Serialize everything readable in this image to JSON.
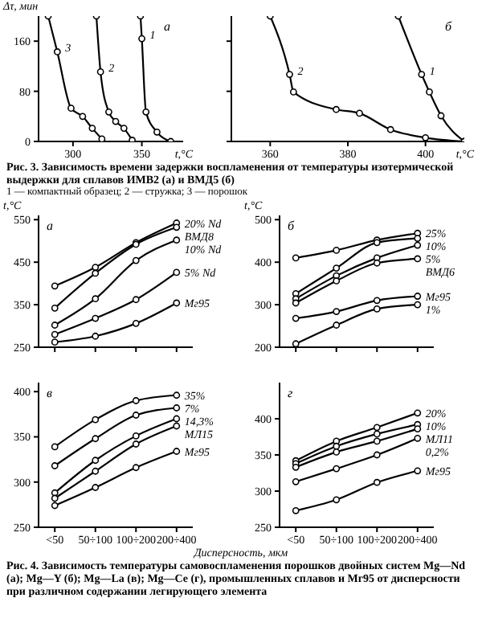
{
  "chart_data": [
    {
      "type": "line",
      "title": "а",
      "xlabel": "t,°C",
      "ylabel": "Δτ, мин",
      "xlim": [
        275,
        380
      ],
      "xticks": [
        300,
        350
      ],
      "ylim": [
        0,
        200
      ],
      "yticks": [
        0,
        80,
        160
      ],
      "marker": "circle",
      "series": [
        {
          "name": "3",
          "color": "#000000",
          "x": [
            282,
            288.6,
            298.6,
            307,
            314,
            321
          ],
          "values": [
            200,
            143,
            53,
            40,
            21,
            4
          ]
        },
        {
          "name": "2",
          "color": "#000000",
          "x": [
            317,
            320,
            326,
            331,
            337,
            343
          ],
          "values": [
            200,
            111,
            47,
            32,
            21,
            2
          ]
        },
        {
          "name": "1",
          "color": "#000000",
          "x": [
            349,
            350,
            353,
            361,
            371
          ],
          "values": [
            200,
            164,
            47,
            15,
            0
          ]
        }
      ]
    },
    {
      "type": "line",
      "title": "б",
      "xlabel": "t,°C",
      "xlim": [
        350,
        410
      ],
      "xticks": [
        360,
        380,
        400
      ],
      "ylim": [
        0,
        200
      ],
      "yticks": [
        {
          "value": 0,
          "label": null
        },
        {
          "value": 80,
          "label": null
        },
        {
          "value": 160,
          "label": null
        }
      ],
      "tick_labels": "x",
      "marker": "circle",
      "annotations": [
        "Рис. 3. Зависимость времени задержки воспламенения от температуры изотермической выдержки для сплавов ИМВ2 (а) и ВМД5 (б)",
        "1 — компактный образец; 2 — стружка; 3 — порошок"
      ],
      "series": [
        {
          "name": "2",
          "color": "#000000",
          "x": [
            360,
            365,
            366,
            377,
            383,
            391,
            400,
            410
          ],
          "values": [
            200,
            107,
            79,
            51,
            45,
            19,
            6,
            0
          ]
        },
        {
          "name": "1",
          "color": "#000000",
          "x": [
            393,
            399,
            401,
            404,
            410
          ],
          "values": [
            200,
            107,
            79,
            41,
            0
          ]
        }
      ]
    },
    {
      "type": "line",
      "title": "а",
      "ylabel": "t,°C",
      "categories": [
        null,
        null,
        null,
        null
      ],
      "ylim": [
        250,
        560
      ],
      "yticks": [
        250,
        350,
        450,
        550
      ],
      "tick_labels": "y",
      "marker": "circle",
      "series": [
        {
          "name": "20% Nd",
          "color": "#000000",
          "values": [
            394,
            438,
            496,
            542
          ]
        },
        {
          "name": "ВМД8",
          "color": "#000000",
          "values": [
            342,
            424,
            492,
            532
          ]
        },
        {
          "name": "10% Nd",
          "color": "#000000",
          "values": [
            302,
            364,
            454,
            502
          ]
        },
        {
          "name": "5% Nd",
          "color": "#000000",
          "values": [
            280,
            318,
            362,
            426
          ]
        },
        {
          "name": "Мг95",
          "color": "#000000",
          "values": [
            262,
            276,
            306,
            354
          ]
        }
      ]
    },
    {
      "type": "line",
      "title": "б",
      "ylabel": "t,°C",
      "categories": [
        null,
        null,
        null,
        null
      ],
      "ylim": [
        200,
        510
      ],
      "yticks": [
        200,
        300,
        400,
        500
      ],
      "tick_labels": "y",
      "marker": "circle",
      "series": [
        {
          "name": "25%",
          "color": "#000000",
          "values": [
            410,
            428,
            452,
            468
          ]
        },
        {
          "name": "10%",
          "color": "#000000",
          "values": [
            326,
            386,
            446,
            456
          ]
        },
        {
          "name": "5%",
          "color": "#000000",
          "values": [
            314,
            368,
            410,
            440
          ]
        },
        {
          "name": "ВМД6",
          "color": "#000000",
          "values": [
            304,
            356,
            398,
            408
          ]
        },
        {
          "name": "Мг95",
          "color": "#000000",
          "values": [
            268,
            284,
            310,
            320
          ]
        },
        {
          "name": "1%",
          "color": "#000000",
          "values": [
            208,
            252,
            290,
            300
          ]
        }
      ]
    },
    {
      "type": "line",
      "title": "в",
      "categories": [
        "<50",
        "50÷100",
        "100÷200",
        "200÷400"
      ],
      "ylim": [
        250,
        410
      ],
      "yticks": [
        250,
        300,
        350,
        400
      ],
      "marker": "circle",
      "series": [
        {
          "name": "35%",
          "color": "#000000",
          "values": [
            339,
            369,
            390,
            396
          ]
        },
        {
          "name": "7%",
          "color": "#000000",
          "values": [
            318,
            348,
            374,
            382
          ]
        },
        {
          "name": "14,3%",
          "color": "#000000",
          "values": [
            288,
            324,
            351,
            370
          ]
        },
        {
          "name": "МЛ15",
          "color": "#000000",
          "values": [
            282,
            312,
            342,
            362
          ]
        },
        {
          "name": "Мг95",
          "color": "#000000",
          "values": [
            274,
            294,
            316,
            334
          ]
        }
      ]
    },
    {
      "type": "line",
      "title": "г",
      "xlabel": "Дисперсность, мкм",
      "categories": [
        "<50",
        "50÷100",
        "100÷200",
        "200÷400"
      ],
      "ylim": [
        250,
        450
      ],
      "yticks": [
        250,
        300,
        350,
        400
      ],
      "marker": "circle",
      "annotations": [
        "Рис. 4. Зависимость температуры самовоспламенения порошков двойных систем Mg—Nd (а); Mg—Y (б); Mg—La (в); Mg—Ce (г), промышленных сплавов и Мг95 от дисперсности при различном содержании легирующего элемента"
      ],
      "series": [
        {
          "name": "20%",
          "color": "#000000",
          "values": [
            342,
            369,
            388,
            408
          ]
        },
        {
          "name": "10%",
          "color": "#000000",
          "values": [
            338,
            362,
            379,
            392
          ]
        },
        {
          "name": "МЛ11",
          "color": "#000000",
          "values": [
            333,
            354,
            369,
            386
          ]
        },
        {
          "name": "0,2%",
          "color": "#000000",
          "values": [
            313,
            331,
            350,
            373
          ]
        },
        {
          "name": "Мг95",
          "color": "#000000",
          "values": [
            273,
            288,
            312,
            328
          ]
        }
      ]
    }
  ]
}
